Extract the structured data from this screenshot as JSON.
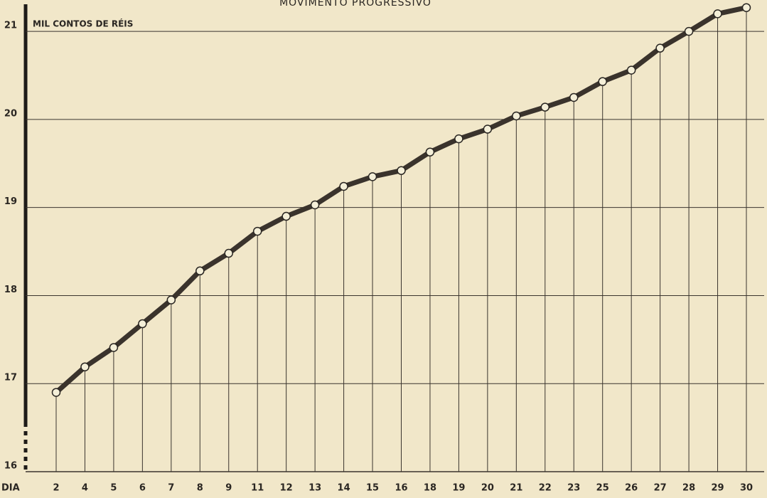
{
  "chart_data": {
    "type": "line",
    "title": "MOVIMENTO PROGRESSIVO",
    "y_label": "MIL CONTOS DE RÉIS",
    "x_label": "DIA",
    "categories": [
      "2",
      "4",
      "5",
      "6",
      "7",
      "8",
      "9",
      "11",
      "12",
      "13",
      "14",
      "15",
      "16",
      "18",
      "19",
      "20",
      "21",
      "22",
      "23",
      "25",
      "26",
      "27",
      "28",
      "29",
      "30"
    ],
    "values": [
      16.9,
      17.19,
      17.41,
      17.68,
      17.95,
      18.28,
      18.48,
      18.73,
      18.9,
      19.03,
      19.24,
      19.35,
      19.42,
      19.63,
      19.78,
      19.89,
      20.04,
      20.14,
      20.25,
      20.43,
      20.56,
      20.81,
      21.0,
      21.2,
      21.27
    ],
    "color": "#3a332c",
    "ylim": [
      16,
      21.3
    ],
    "yticks": [
      16,
      17,
      18,
      19,
      20,
      21
    ],
    "grid": true
  }
}
